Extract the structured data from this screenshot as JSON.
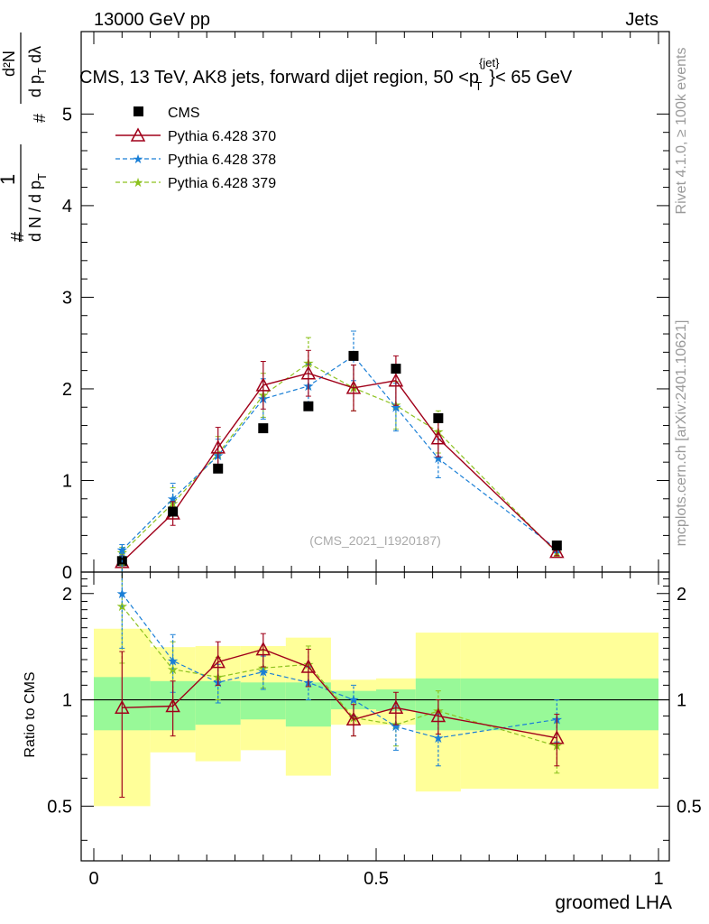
{
  "header": {
    "energy": "13000 GeV pp",
    "category": "Jets",
    "plot_title": "CMS, 13 TeV, AK8 jets, forward dijet region, 50 <p",
    "plot_title_super": "{jet}",
    "plot_title_sub": "T",
    "plot_title_tail": "}< 65 GeV"
  },
  "side_labels": {
    "rivet": "Rivet 4.1.0, ≥ 100k events",
    "mcplots": "mcplots.cern.ch [arXiv:2401.10621]"
  },
  "watermark": "(CMS_2021_I1920187)",
  "ylabel_main": {
    "num_1": "1",
    "den_1": "d N / d p",
    "den_1_sub": "T",
    "num_2": "d²N",
    "den_2": "d p",
    "den_2_sub": "T",
    "den_2_tail": " dλ",
    "hash": "#"
  },
  "ylabel_ratio": "Ratio to CMS",
  "xlabel": "groomed LHA",
  "legend": {
    "cms": "CMS",
    "p370": "Pythia 6.428 370",
    "p378": "Pythia 6.428 378",
    "p379": "Pythia 6.428 379"
  },
  "colors": {
    "p370": "#a0001a",
    "p378": "#1a7fd6",
    "p379": "#8dc21f",
    "band_inner": "#98f998",
    "band_outer": "#ffff99"
  },
  "chart_data": [
    {
      "type": "scatter",
      "panel": "main",
      "x_axis": {
        "range": [
          0,
          1
        ],
        "ticks": [
          "0",
          "0.5",
          "1"
        ]
      },
      "y_axis": {
        "range": [
          0,
          5.9
        ],
        "ticks": [
          "0",
          "1",
          "2",
          "3",
          "4",
          "5"
        ]
      },
      "x": [
        0.05,
        0.14,
        0.22,
        0.3,
        0.38,
        0.46,
        0.535,
        0.61,
        0.82
      ],
      "series": [
        {
          "name": "CMS",
          "values": [
            0.12,
            0.66,
            1.13,
            1.57,
            1.81,
            2.36,
            2.22,
            1.68,
            0.29
          ]
        },
        {
          "name": "Pythia 6.428 370",
          "values": [
            0.11,
            0.64,
            1.36,
            2.04,
            2.17,
            2.01,
            2.09,
            1.46,
            0.22
          ],
          "errors": [
            0.04,
            0.13,
            0.22,
            0.26,
            0.25,
            0.25,
            0.27,
            0.2,
            0.04
          ]
        },
        {
          "name": "Pythia 6.428 378",
          "values": [
            0.24,
            0.8,
            1.27,
            1.89,
            2.03,
            2.36,
            1.8,
            1.24,
            0.25
          ],
          "errors": [
            0.06,
            0.17,
            0.18,
            0.22,
            0.24,
            0.27,
            0.26,
            0.21,
            0.04
          ]
        },
        {
          "name": "Pythia 6.428 379",
          "values": [
            0.21,
            0.75,
            1.29,
            1.93,
            2.28,
            2.01,
            1.82,
            1.53,
            0.21
          ],
          "errors": [
            0.06,
            0.17,
            0.19,
            0.24,
            0.28,
            0.25,
            0.26,
            0.23,
            0.04
          ]
        }
      ]
    },
    {
      "type": "scatter",
      "panel": "ratio",
      "ylabel": "Ratio to CMS",
      "x_axis": {
        "range": [
          0,
          1
        ],
        "ticks": [
          "0",
          "0.5",
          "1"
        ]
      },
      "y_axis": {
        "range": [
          0.35,
          2.3
        ],
        "ticks": [
          "0.5",
          "1",
          "2"
        ],
        "reference_line": 1
      },
      "x": [
        0.05,
        0.14,
        0.22,
        0.3,
        0.38,
        0.46,
        0.535,
        0.61,
        0.82
      ],
      "bands": {
        "edges": [
          0,
          0.1,
          0.18,
          0.26,
          0.34,
          0.42,
          0.5,
          0.57,
          0.65,
          1.0
        ],
        "inner": [
          [
            0.82,
            1.16
          ],
          [
            0.82,
            1.13
          ],
          [
            0.85,
            1.13
          ],
          [
            0.88,
            1.12
          ],
          [
            0.84,
            1.12
          ],
          [
            0.94,
            1.06
          ],
          [
            0.93,
            1.07
          ],
          [
            0.82,
            1.15
          ],
          [
            0.82,
            1.15
          ]
        ],
        "outer": [
          [
            0.5,
            1.59
          ],
          [
            0.71,
            1.41
          ],
          [
            0.67,
            1.42
          ],
          [
            0.72,
            1.42
          ],
          [
            0.61,
            1.5
          ],
          [
            0.85,
            1.14
          ],
          [
            0.85,
            1.15
          ],
          [
            0.55,
            1.55
          ],
          [
            0.56,
            1.55
          ]
        ]
      },
      "series": [
        {
          "name": "Pythia 6.428 370",
          "values": [
            0.95,
            0.96,
            1.28,
            1.39,
            1.24,
            0.88,
            0.95,
            0.9,
            0.78
          ],
          "errors": [
            0.42,
            0.17,
            0.18,
            0.15,
            0.15,
            0.09,
            0.1,
            0.1,
            0.13
          ]
        },
        {
          "name": "Pythia 6.428 378",
          "values": [
            2.0,
            1.29,
            1.12,
            1.2,
            1.12,
            1.0,
            0.84,
            0.78,
            0.88
          ],
          "errors": [
            0.6,
            0.24,
            0.14,
            0.13,
            0.12,
            0.1,
            0.12,
            0.13,
            0.12
          ]
        },
        {
          "name": "Pythia 6.428 379",
          "values": [
            1.84,
            1.22,
            1.16,
            1.23,
            1.26,
            0.89,
            0.85,
            0.93,
            0.74
          ],
          "errors": [
            0.57,
            0.24,
            0.16,
            0.15,
            0.16,
            0.1,
            0.11,
            0.13,
            0.12
          ]
        }
      ]
    }
  ]
}
